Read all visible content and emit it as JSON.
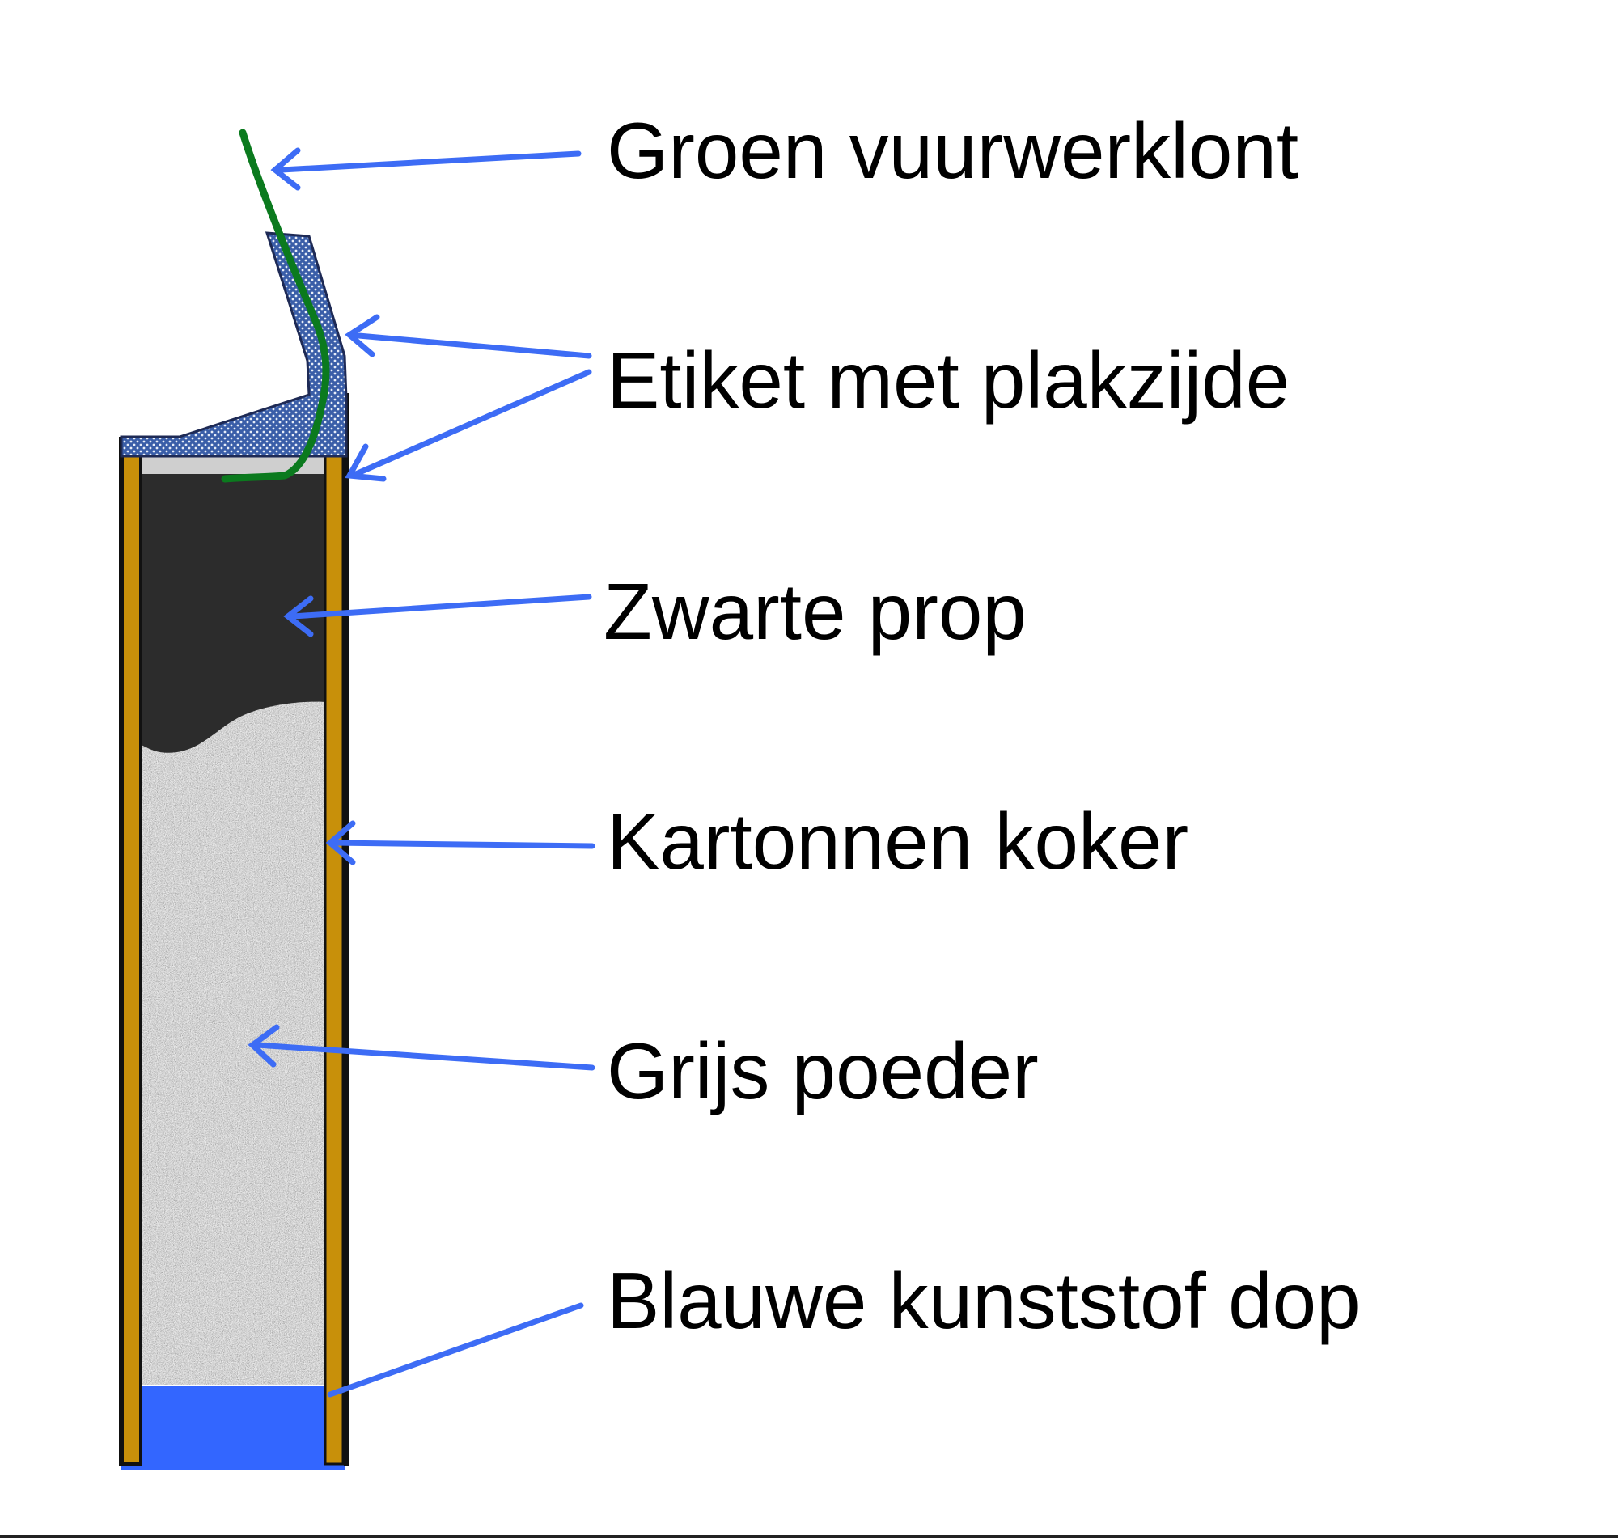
{
  "labels": {
    "fuse": "Groen vuurwerklont",
    "label": "Etiket met plakzijde",
    "plug": "Zwarte prop",
    "tube": "Kartonnen koker",
    "powder": "Grijs poeder",
    "cap": "Blauwe kunststof dop"
  },
  "colors": {
    "arrow": "#3d6cf5",
    "fuse": "#0b7a1e",
    "tube_wall": "#c8900a",
    "plug": "#2c2c2c",
    "cap": "#3366ff",
    "label_paper": "#3a5ea8",
    "powder_base": "#b4b4b4",
    "gap": "#cfcfcf"
  }
}
